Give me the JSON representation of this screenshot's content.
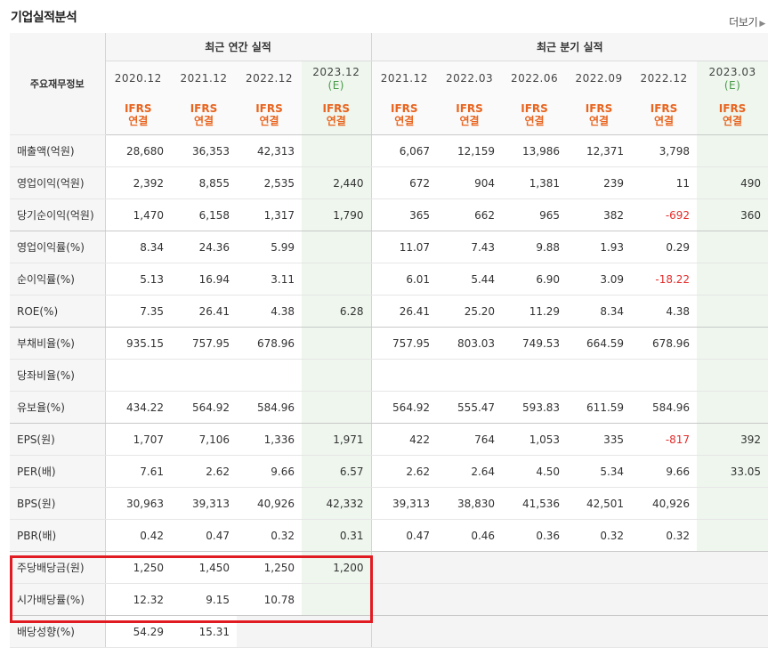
{
  "title": "기업실적분석",
  "more_label": "더보기",
  "header": {
    "row_label": "주요재무정보",
    "annual_label": "최근 연간 실적",
    "quarter_label": "최근 분기 실적",
    "annual_periods": [
      {
        "date": "2020.12",
        "est": ""
      },
      {
        "date": "2021.12",
        "est": ""
      },
      {
        "date": "2022.12",
        "est": ""
      },
      {
        "date": "2023.12",
        "est": "(E)"
      }
    ],
    "quarter_periods": [
      {
        "date": "2021.12",
        "est": ""
      },
      {
        "date": "2022.03",
        "est": ""
      },
      {
        "date": "2022.06",
        "est": ""
      },
      {
        "date": "2022.09",
        "est": ""
      },
      {
        "date": "2022.12",
        "est": ""
      },
      {
        "date": "2023.03",
        "est": "(E)"
      }
    ],
    "ifrs_top": "IFRS",
    "ifrs_bottom": "연결"
  },
  "rows": [
    {
      "label": "매출액(억원)",
      "values": [
        "28,680",
        "36,353",
        "42,313",
        "",
        "6,067",
        "12,159",
        "13,986",
        "12,371",
        "3,798",
        ""
      ]
    },
    {
      "label": "영업이익(억원)",
      "values": [
        "2,392",
        "8,855",
        "2,535",
        "2,440",
        "672",
        "904",
        "1,381",
        "239",
        "11",
        "490"
      ]
    },
    {
      "label": "당기순이익(억원)",
      "values": [
        "1,470",
        "6,158",
        "1,317",
        "1,790",
        "365",
        "662",
        "965",
        "382",
        "-692",
        "360"
      ]
    },
    {
      "label": "영업이익률(%)",
      "values": [
        "8.34",
        "24.36",
        "5.99",
        "",
        "11.07",
        "7.43",
        "9.88",
        "1.93",
        "0.29",
        ""
      ]
    },
    {
      "label": "순이익률(%)",
      "values": [
        "5.13",
        "16.94",
        "3.11",
        "",
        "6.01",
        "5.44",
        "6.90",
        "3.09",
        "-18.22",
        ""
      ]
    },
    {
      "label": "ROE(%)",
      "values": [
        "7.35",
        "26.41",
        "4.38",
        "6.28",
        "26.41",
        "25.20",
        "11.29",
        "8.34",
        "4.38",
        ""
      ]
    },
    {
      "label": "부채비율(%)",
      "values": [
        "935.15",
        "757.95",
        "678.96",
        "",
        "757.95",
        "803.03",
        "749.53",
        "664.59",
        "678.96",
        ""
      ]
    },
    {
      "label": "당좌비율(%)",
      "values": [
        "",
        "",
        "",
        "",
        "",
        "",
        "",
        "",
        "",
        ""
      ]
    },
    {
      "label": "유보율(%)",
      "values": [
        "434.22",
        "564.92",
        "584.96",
        "",
        "564.92",
        "555.47",
        "593.83",
        "611.59",
        "584.96",
        ""
      ]
    },
    {
      "label": "EPS(원)",
      "values": [
        "1,707",
        "7,106",
        "1,336",
        "1,971",
        "422",
        "764",
        "1,053",
        "335",
        "-817",
        "392"
      ]
    },
    {
      "label": "PER(배)",
      "values": [
        "7.61",
        "2.62",
        "9.66",
        "6.57",
        "2.62",
        "2.64",
        "4.50",
        "5.34",
        "9.66",
        "33.05"
      ]
    },
    {
      "label": "BPS(원)",
      "values": [
        "30,963",
        "39,313",
        "40,926",
        "42,332",
        "39,313",
        "38,830",
        "41,536",
        "42,501",
        "40,926",
        ""
      ]
    },
    {
      "label": "PBR(배)",
      "values": [
        "0.42",
        "0.47",
        "0.32",
        "0.31",
        "0.47",
        "0.46",
        "0.36",
        "0.32",
        "0.32",
        ""
      ]
    },
    {
      "label": "주당배당금(원)",
      "values": [
        "1,250",
        "1,450",
        "1,250",
        "1,200",
        "",
        "",
        "",
        "",
        "",
        ""
      ]
    },
    {
      "label": "시가배당률(%)",
      "values": [
        "12.32",
        "9.15",
        "10.78",
        "",
        "",
        "",
        "",
        "",
        "",
        ""
      ]
    },
    {
      "label": "배당성향(%)",
      "values": [
        "54.29",
        "15.31",
        "",
        "",
        "",
        "",
        "",
        "",
        "",
        ""
      ]
    }
  ],
  "colors": {
    "ifrs": "#e8641e",
    "negative": "#e52b2b",
    "estimate_bg": "#eef6ee",
    "highlight": "#e11b22"
  }
}
